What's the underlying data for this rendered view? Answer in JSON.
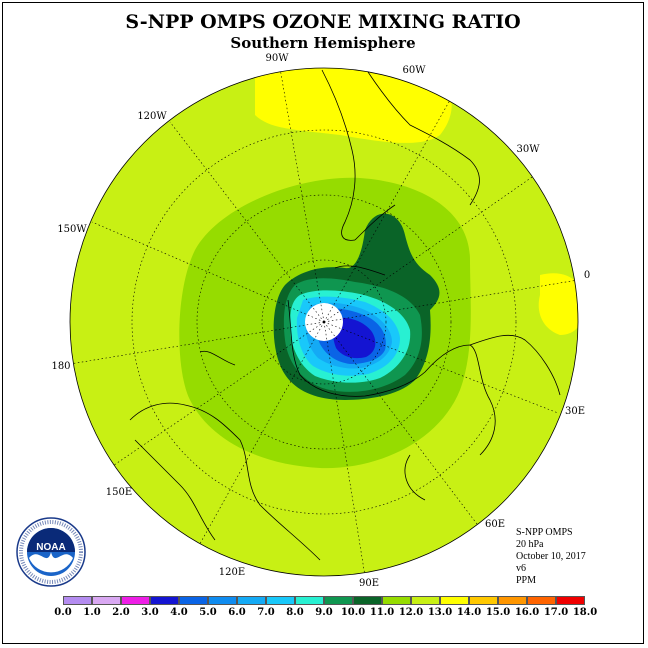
{
  "title": "S-NPP OMPS OZONE MIXING RATIO",
  "subtitle": "Southern Hemisphere",
  "longitude_labels": [
    "90W",
    "60W",
    "30W",
    "0",
    "30E",
    "60E",
    "90E",
    "120E",
    "150E",
    "180",
    "150W",
    "120W"
  ],
  "info": {
    "instrument": "S-NPP OMPS",
    "level": "20 hPa",
    "date": "October 10, 2017",
    "version": "v6",
    "units": "PPM"
  },
  "colorbar": {
    "ticks": [
      "0.0",
      "1.0",
      "2.0",
      "3.0",
      "4.0",
      "5.0",
      "6.0",
      "7.0",
      "8.0",
      "9.0",
      "10.0",
      "11.0",
      "12.0",
      "13.0",
      "14.0",
      "15.0",
      "16.0",
      "17.0",
      "18.0"
    ],
    "colors": [
      "#b48cf0",
      "#d9a8f2",
      "#ee1ee6",
      "#1414d2",
      "#0a64e6",
      "#0f8cf0",
      "#14aaf5",
      "#19c8fa",
      "#28f0d2",
      "#0f9650",
      "#0a6428",
      "#96dc00",
      "#c8f014",
      "#ffff00",
      "#ffc800",
      "#ff9600",
      "#ff6400",
      "#f00000",
      "#82503c"
    ]
  },
  "logo": {
    "text": "NOAA"
  }
}
